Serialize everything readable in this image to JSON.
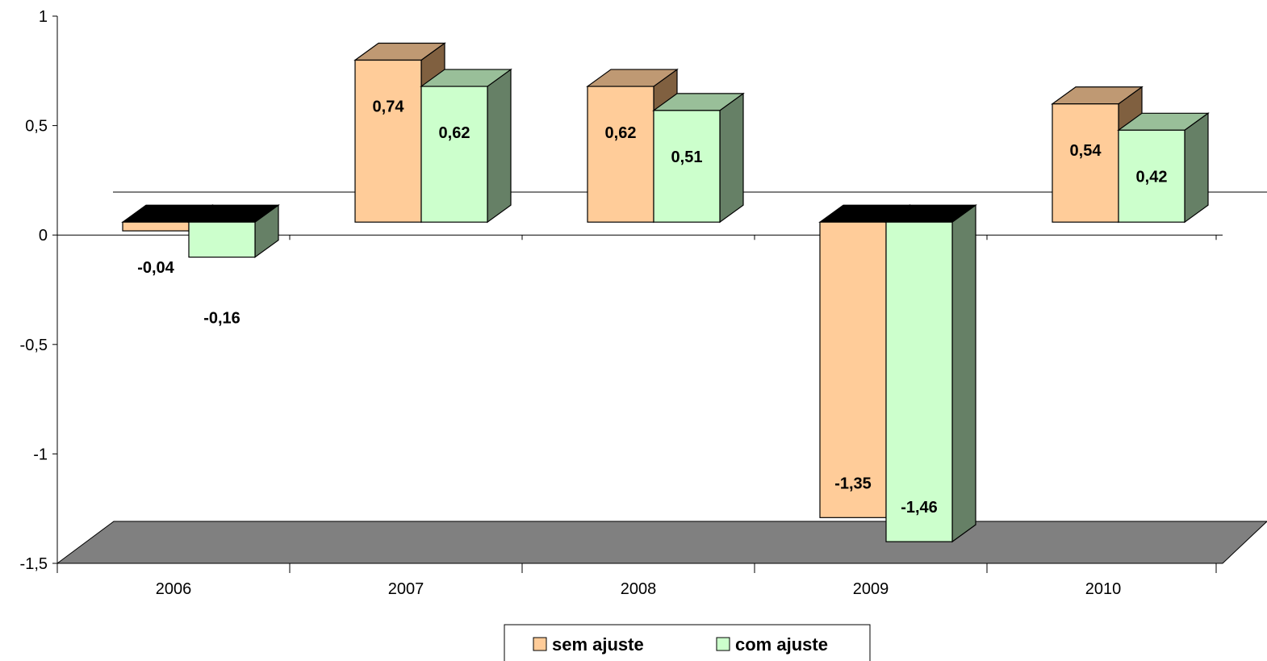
{
  "chart_data": {
    "type": "bar",
    "title": "",
    "xlabel": "",
    "ylabel": "",
    "categories": [
      "2006",
      "2007",
      "2008",
      "2009",
      "2010"
    ],
    "series": [
      {
        "name": "sem ajuste",
        "values": [
          -0.04,
          0.74,
          0.62,
          -1.35,
          0.54
        ],
        "labels": [
          "-0,04",
          "0,74",
          "0,62",
          "-1,35",
          "0,54"
        ]
      },
      {
        "name": "com ajuste",
        "values": [
          -0.16,
          0.62,
          0.51,
          -1.46,
          0.42
        ],
        "labels": [
          "-0,16",
          "0,62",
          "0,51",
          "-1,46",
          "0,42"
        ]
      }
    ],
    "ylim": [
      -1.5,
      1
    ],
    "yticks": [
      1,
      0.5,
      0,
      -0.5,
      -1,
      -1.5
    ],
    "ytick_labels": [
      "1",
      "0,5",
      "0",
      "-0,5",
      "-1",
      "-1,5"
    ],
    "grid": false,
    "legend": "bottom",
    "style": "3d-clustered-column",
    "colors": {
      "sem_front": "#FFCC99",
      "sem_top": "#BF9973",
      "sem_side": "#806040",
      "com_front": "#CCFFCC",
      "com_top": "#99BF99",
      "com_side": "#668066",
      "floor": "#808080",
      "zero_cap": "#000000"
    }
  }
}
